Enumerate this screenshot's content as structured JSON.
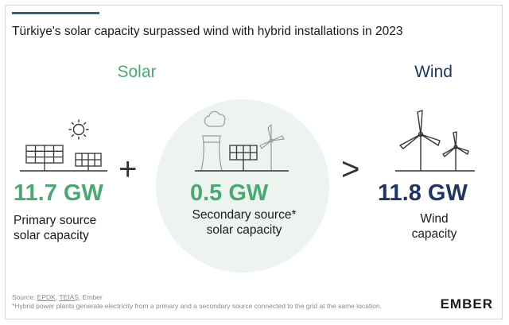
{
  "title": "Türkiye's solar capacity surpassed wind with hybrid installations in 2023",
  "solar": {
    "heading": "Solar",
    "primary": {
      "value": "11.7 GW",
      "caption_line1": "Primary source",
      "caption_line2": "solar capacity"
    },
    "secondary": {
      "value": "0.5 GW",
      "caption_line1": "Secondary source*",
      "caption_line2": "solar capacity"
    }
  },
  "operators": {
    "plus": "+",
    "greater_than": ">"
  },
  "wind": {
    "heading": "Wind",
    "value": "11.8 GW",
    "caption_line1": "Wind",
    "caption_line2": "capacity"
  },
  "footer": {
    "source_prefix": "Source: ",
    "source_1": "EPDK",
    "source_sep_1": ", ",
    "source_2": "TEİAŞ",
    "source_sep_2": ", Ember",
    "note": "*Hybrid power plants generate electricity from a primary and a secondary source connected to the grid at the same location."
  },
  "logo": "EMBER",
  "colors": {
    "solar_green": "#4aa872",
    "wind_navy": "#1f3566",
    "circle_fill": "#edf4ef",
    "accent_bar": "#2a6a74"
  },
  "icons": [
    "sun-icon",
    "solar-panel-icon",
    "power-plant-icon",
    "wind-turbine-icon"
  ]
}
